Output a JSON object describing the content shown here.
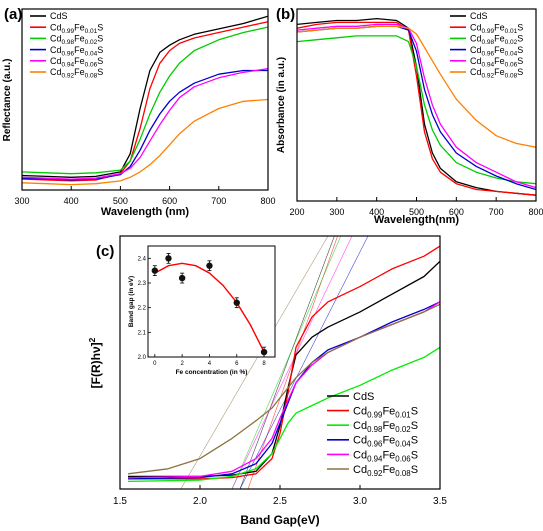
{
  "chart_data": [
    {
      "panel_label": "(a)",
      "type": "line",
      "xlabel": "Wavelength (nm)",
      "ylabel": "Reflectance (a.u.)",
      "xlim": [
        300,
        800
      ],
      "ylim": [
        0,
        1
      ],
      "xticks": [
        300,
        400,
        500,
        600,
        700,
        800
      ],
      "show_yticks": false,
      "legend_position": "top-left",
      "series": [
        {
          "name": "CdS",
          "label_base": "CdS",
          "color": "#000000",
          "x": [
            300,
            350,
            400,
            450,
            500,
            520,
            540,
            560,
            580,
            600,
            620,
            650,
            700,
            750,
            800
          ],
          "y": [
            0.08,
            0.075,
            0.07,
            0.075,
            0.1,
            0.2,
            0.45,
            0.66,
            0.76,
            0.8,
            0.83,
            0.86,
            0.89,
            0.92,
            0.96
          ]
        },
        {
          "name": "Cd0.99Fe0.01S",
          "label_base": "Cd",
          "label_sub1": "0.99",
          "label_mid": "Fe",
          "label_sub2": "0.01",
          "label_tail": "S",
          "color": "#ff0000",
          "x": [
            300,
            350,
            400,
            450,
            500,
            520,
            540,
            560,
            580,
            600,
            620,
            650,
            700,
            750,
            800
          ],
          "y": [
            0.06,
            0.055,
            0.05,
            0.055,
            0.09,
            0.16,
            0.34,
            0.56,
            0.7,
            0.77,
            0.81,
            0.84,
            0.87,
            0.9,
            0.93
          ]
        },
        {
          "name": "Cd0.98Fe0.02S",
          "label_base": "Cd",
          "label_sub1": "0.98",
          "label_mid": "Fe",
          "label_sub2": "0.02",
          "label_tail": "S",
          "color": "#00cc00",
          "x": [
            300,
            350,
            400,
            450,
            500,
            520,
            540,
            560,
            580,
            600,
            620,
            650,
            700,
            750,
            800
          ],
          "y": [
            0.1,
            0.095,
            0.09,
            0.095,
            0.11,
            0.16,
            0.28,
            0.42,
            0.54,
            0.63,
            0.7,
            0.77,
            0.83,
            0.87,
            0.9
          ]
        },
        {
          "name": "Cd0.96Fe0.04S",
          "label_base": "Cd",
          "label_sub1": "0.96",
          "label_mid": "Fe",
          "label_sub2": "0.04",
          "label_tail": "S",
          "color": "#0000cc",
          "x": [
            300,
            350,
            400,
            450,
            500,
            520,
            540,
            560,
            580,
            600,
            620,
            650,
            700,
            750,
            800
          ],
          "y": [
            0.065,
            0.06,
            0.055,
            0.06,
            0.085,
            0.13,
            0.22,
            0.33,
            0.42,
            0.49,
            0.54,
            0.59,
            0.64,
            0.66,
            0.66
          ]
        },
        {
          "name": "Cd0.94Fe0.06S",
          "label_base": "Cd",
          "label_sub1": "0.94",
          "label_mid": "Fe",
          "label_sub2": "0.06",
          "label_tail": "S",
          "color": "#ff00ff",
          "x": [
            300,
            350,
            400,
            450,
            500,
            520,
            540,
            560,
            580,
            600,
            620,
            650,
            700,
            750,
            800
          ],
          "y": [
            0.07,
            0.065,
            0.06,
            0.065,
            0.09,
            0.12,
            0.18,
            0.27,
            0.36,
            0.44,
            0.51,
            0.57,
            0.62,
            0.65,
            0.67
          ]
        },
        {
          "name": "Cd0.92Fe0.08S",
          "label_base": "Cd",
          "label_sub1": "0.92",
          "label_mid": "Fe",
          "label_sub2": "0.08",
          "label_tail": "S",
          "color": "#ff8000",
          "x": [
            300,
            350,
            400,
            450,
            500,
            520,
            540,
            560,
            580,
            600,
            620,
            650,
            700,
            750,
            800
          ],
          "y": [
            0.04,
            0.035,
            0.03,
            0.035,
            0.05,
            0.07,
            0.1,
            0.14,
            0.19,
            0.25,
            0.31,
            0.38,
            0.45,
            0.49,
            0.5
          ]
        }
      ]
    },
    {
      "panel_label": "(b)",
      "type": "line",
      "xlabel": "Wavelength(nm)",
      "ylabel": "Absorbance (in a.u.)",
      "xlim": [
        200,
        800
      ],
      "ylim": [
        0,
        1
      ],
      "xticks": [
        200,
        300,
        400,
        500,
        600,
        700,
        800
      ],
      "show_yticks": false,
      "legend_position": "top-right",
      "series": [
        {
          "name": "CdS",
          "label_base": "CdS",
          "color": "#000000",
          "x": [
            200,
            250,
            300,
            350,
            400,
            450,
            480,
            500,
            520,
            540,
            560,
            600,
            650,
            700,
            750,
            800
          ],
          "y": [
            0.92,
            0.93,
            0.94,
            0.94,
            0.95,
            0.94,
            0.9,
            0.7,
            0.4,
            0.25,
            0.17,
            0.1,
            0.07,
            0.05,
            0.04,
            0.03
          ]
        },
        {
          "name": "Cd0.99Fe0.01S",
          "label_base": "Cd",
          "label_sub1": "0.99",
          "label_mid": "Fe",
          "label_sub2": "0.01",
          "label_tail": "S",
          "color": "#ff0000",
          "x": [
            200,
            250,
            300,
            350,
            400,
            450,
            480,
            500,
            520,
            540,
            560,
            600,
            650,
            700,
            750,
            800
          ],
          "y": [
            0.9,
            0.92,
            0.93,
            0.93,
            0.93,
            0.93,
            0.89,
            0.65,
            0.36,
            0.22,
            0.15,
            0.09,
            0.06,
            0.05,
            0.04,
            0.03
          ]
        },
        {
          "name": "Cd0.98Fe0.02S",
          "label_base": "Cd",
          "label_sub1": "0.98",
          "label_mid": "Fe",
          "label_sub2": "0.02",
          "label_tail": "S",
          "color": "#00cc00",
          "x": [
            200,
            250,
            300,
            350,
            400,
            450,
            480,
            500,
            520,
            540,
            560,
            600,
            650,
            700,
            750,
            800
          ],
          "y": [
            0.83,
            0.84,
            0.85,
            0.86,
            0.86,
            0.86,
            0.83,
            0.7,
            0.5,
            0.37,
            0.29,
            0.2,
            0.15,
            0.12,
            0.1,
            0.09
          ]
        },
        {
          "name": "Cd0.96Fe0.04S",
          "label_base": "Cd",
          "label_sub1": "0.96",
          "label_mid": "Fe",
          "label_sub2": "0.04",
          "label_tail": "S",
          "color": "#0000cc",
          "x": [
            200,
            250,
            300,
            350,
            400,
            450,
            480,
            500,
            520,
            540,
            560,
            600,
            650,
            700,
            750,
            800
          ],
          "y": [
            0.88,
            0.89,
            0.9,
            0.9,
            0.91,
            0.91,
            0.89,
            0.78,
            0.58,
            0.45,
            0.36,
            0.25,
            0.18,
            0.13,
            0.09,
            0.06
          ]
        },
        {
          "name": "Cd0.94Fe0.06S",
          "label_base": "Cd",
          "label_sub1": "0.94",
          "label_mid": "Fe",
          "label_sub2": "0.06",
          "label_tail": "S",
          "color": "#ff00ff",
          "x": [
            200,
            250,
            300,
            350,
            400,
            450,
            480,
            500,
            520,
            540,
            560,
            600,
            650,
            700,
            750,
            800
          ],
          "y": [
            0.89,
            0.9,
            0.91,
            0.91,
            0.92,
            0.92,
            0.9,
            0.82,
            0.64,
            0.5,
            0.4,
            0.28,
            0.2,
            0.15,
            0.1,
            0.07
          ]
        },
        {
          "name": "Cd0.92Fe0.08S",
          "label_base": "Cd",
          "label_sub1": "0.92",
          "label_mid": "Fe",
          "label_sub2": "0.08",
          "label_tail": "S",
          "color": "#ff8000",
          "x": [
            200,
            250,
            300,
            350,
            400,
            450,
            480,
            500,
            520,
            540,
            560,
            600,
            650,
            700,
            750,
            800
          ],
          "y": [
            0.88,
            0.89,
            0.9,
            0.9,
            0.91,
            0.91,
            0.9,
            0.87,
            0.8,
            0.73,
            0.66,
            0.53,
            0.42,
            0.34,
            0.3,
            0.28
          ]
        }
      ]
    },
    {
      "panel_label": "(c)",
      "type": "line",
      "xlabel": "Band Gap(eV)",
      "ylabel": "[F(R)hν]",
      "ylabel_sup": "2",
      "xlim": [
        1.5,
        3.5
      ],
      "ylim": [
        0,
        1
      ],
      "xticks": [
        1.5,
        2.0,
        2.5,
        3.0,
        3.5
      ],
      "show_yticks": false,
      "legend_position": "bottom-right",
      "series": [
        {
          "name": "CdS",
          "label_base": "CdS",
          "color": "#000000",
          "x": [
            1.55,
            2.0,
            2.2,
            2.35,
            2.45,
            2.5,
            2.55,
            2.6,
            2.7,
            2.8,
            3.0,
            3.2,
            3.4,
            3.5
          ],
          "y": [
            0.05,
            0.05,
            0.055,
            0.07,
            0.14,
            0.25,
            0.4,
            0.53,
            0.6,
            0.64,
            0.7,
            0.77,
            0.84,
            0.9
          ]
        },
        {
          "name": "Cd0.99Fe0.01S",
          "label_base": "Cd",
          "label_sub1": "0.99",
          "label_mid": "Fe",
          "label_sub2": "0.01",
          "label_tail": "S",
          "color": "#ff0000",
          "x": [
            1.55,
            2.0,
            2.2,
            2.35,
            2.45,
            2.5,
            2.55,
            2.6,
            2.7,
            2.8,
            3.0,
            3.2,
            3.4,
            3.5
          ],
          "y": [
            0.04,
            0.04,
            0.045,
            0.06,
            0.12,
            0.22,
            0.38,
            0.56,
            0.68,
            0.74,
            0.8,
            0.87,
            0.92,
            0.96
          ]
        },
        {
          "name": "Cd0.98Fe0.02S",
          "label_base": "Cd",
          "label_sub1": "0.98",
          "label_mid": "Fe",
          "label_sub2": "0.02",
          "label_tail": "S",
          "color": "#00ee00",
          "x": [
            1.55,
            2.0,
            2.2,
            2.35,
            2.45,
            2.5,
            2.55,
            2.6,
            2.7,
            2.8,
            3.0,
            3.2,
            3.4,
            3.5
          ],
          "y": [
            0.03,
            0.035,
            0.05,
            0.08,
            0.14,
            0.2,
            0.26,
            0.3,
            0.33,
            0.36,
            0.41,
            0.47,
            0.52,
            0.56
          ]
        },
        {
          "name": "Cd0.96Fe0.04S",
          "label_base": "Cd",
          "label_sub1": "0.96",
          "label_mid": "Fe",
          "label_sub2": "0.04",
          "label_tail": "S",
          "color": "#0000cc",
          "x": [
            1.55,
            2.0,
            2.2,
            2.35,
            2.45,
            2.5,
            2.55,
            2.6,
            2.7,
            2.8,
            3.0,
            3.2,
            3.4,
            3.5
          ],
          "y": [
            0.04,
            0.045,
            0.06,
            0.1,
            0.18,
            0.26,
            0.34,
            0.42,
            0.5,
            0.55,
            0.6,
            0.66,
            0.71,
            0.74
          ]
        },
        {
          "name": "Cd0.94Fe0.06S",
          "label_base": "Cd",
          "label_sub1": "0.94",
          "label_mid": "Fe",
          "label_sub2": "0.06",
          "label_tail": "S",
          "color": "#ff00ff",
          "x": [
            1.55,
            2.0,
            2.2,
            2.35,
            2.45,
            2.5,
            2.55,
            2.6,
            2.7,
            2.8,
            3.0,
            3.2,
            3.4,
            3.5
          ],
          "y": [
            0.045,
            0.05,
            0.07,
            0.12,
            0.2,
            0.28,
            0.35,
            0.42,
            0.49,
            0.54,
            0.6,
            0.65,
            0.7,
            0.74
          ]
        },
        {
          "name": "Cd0.92Fe0.08S",
          "label_base": "Cd",
          "label_sub1": "0.92",
          "label_mid": "Fe",
          "label_sub2": "0.08",
          "label_tail": "S",
          "color": "#8b7340",
          "x": [
            1.55,
            1.8,
            2.0,
            2.2,
            2.35,
            2.45,
            2.5,
            2.55,
            2.6,
            2.7,
            2.8,
            3.0,
            3.2,
            3.4,
            3.5
          ],
          "y": [
            0.06,
            0.08,
            0.12,
            0.2,
            0.27,
            0.32,
            0.36,
            0.4,
            0.44,
            0.5,
            0.54,
            0.6,
            0.65,
            0.7,
            0.73
          ]
        }
      ],
      "tangents": [
        {
          "color": "#000000",
          "x": [
            2.25,
            2.84
          ],
          "y": [
            0.0,
            1.0
          ]
        },
        {
          "color": "#ff0000",
          "x": [
            2.3,
            2.86
          ],
          "y": [
            0.0,
            1.0
          ]
        },
        {
          "color": "#00cc00",
          "x": [
            2.2,
            2.88
          ],
          "y": [
            0.0,
            1.0
          ]
        },
        {
          "color": "#0000cc",
          "x": [
            2.25,
            3.05
          ],
          "y": [
            0.0,
            1.0
          ]
        },
        {
          "color": "#ff00ff",
          "x": [
            2.2,
            2.95
          ],
          "y": [
            0.0,
            1.0
          ]
        },
        {
          "color": "#8b7340",
          "x": [
            1.88,
            2.8
          ],
          "y": [
            0.0,
            1.0
          ]
        }
      ],
      "inset": {
        "type": "scatter",
        "xlabel": "Fe concentration (in %)",
        "ylabel": "Band gap (in eV)",
        "xlim": [
          -0.5,
          8.8
        ],
        "ylim": [
          2.0,
          2.45
        ],
        "xticks": [
          0,
          2,
          4,
          6,
          8
        ],
        "yticks": [
          2.0,
          2.1,
          2.2,
          2.3,
          2.4
        ],
        "ytick_labels": [
          "2.0",
          "2.1",
          "2.2",
          "2.3",
          "2.4"
        ],
        "points": [
          {
            "x": 0,
            "y": 2.35,
            "err": 0.02
          },
          {
            "x": 1,
            "y": 2.4,
            "err": 0.02
          },
          {
            "x": 2,
            "y": 2.32,
            "err": 0.02
          },
          {
            "x": 4,
            "y": 2.37,
            "err": 0.02
          },
          {
            "x": 6,
            "y": 2.22,
            "err": 0.02
          },
          {
            "x": 8,
            "y": 2.02,
            "err": 0.02
          }
        ],
        "fit": {
          "color": "#ff0000",
          "x": [
            0,
            1,
            2,
            3,
            4,
            5,
            6,
            7,
            8
          ],
          "y": [
            2.34,
            2.37,
            2.38,
            2.37,
            2.34,
            2.29,
            2.22,
            2.13,
            2.02
          ]
        }
      }
    }
  ]
}
